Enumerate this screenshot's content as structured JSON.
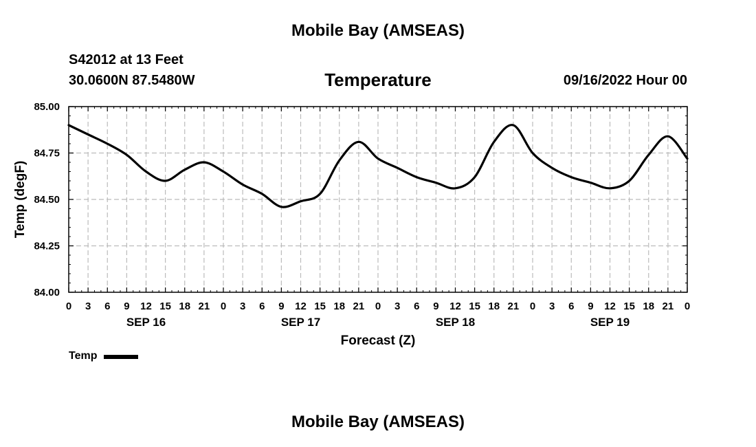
{
  "header": {
    "main_title": "Mobile Bay (AMSEAS)",
    "station": "S42012 at 13 Feet",
    "coords": "30.0600N  87.5480W",
    "subtitle": "Temperature",
    "run_time": "09/16/2022 Hour 00"
  },
  "footer": {
    "main_title": "Mobile Bay (AMSEAS)"
  },
  "chart_data": {
    "type": "line",
    "title": "Temperature",
    "xlabel": "Forecast (Z)",
    "ylabel": "Temp (degF)",
    "ylim": [
      84.0,
      85.0
    ],
    "y_ticks": [
      "84.00",
      "84.25",
      "84.50",
      "84.75",
      "85.00"
    ],
    "x_range_hours": [
      0,
      96
    ],
    "x_tick_labels": [
      "0",
      "3",
      "6",
      "9",
      "12",
      "15",
      "18",
      "21",
      "0",
      "3",
      "6",
      "9",
      "12",
      "15",
      "18",
      "21",
      "0",
      "3",
      "6",
      "9",
      "12",
      "15",
      "18",
      "21",
      "0",
      "3",
      "6",
      "9",
      "12",
      "15",
      "18",
      "21",
      "0"
    ],
    "date_labels": [
      {
        "label": "SEP 16",
        "hour": 12
      },
      {
        "label": "SEP 17",
        "hour": 36
      },
      {
        "label": "SEP 18",
        "hour": 60
      },
      {
        "label": "SEP 19",
        "hour": 84
      }
    ],
    "grid": true,
    "legend": {
      "placement": "bottom-left",
      "entries": [
        "Temp"
      ]
    },
    "series": [
      {
        "name": "Temp",
        "color": "#000000",
        "x": [
          0,
          3,
          6,
          9,
          12,
          15,
          18,
          21,
          24,
          27,
          30,
          33,
          36,
          39,
          42,
          45,
          48,
          51,
          54,
          57,
          60,
          63,
          66,
          69,
          72,
          75,
          78,
          81,
          84,
          87,
          90,
          93,
          96
        ],
        "y": [
          84.9,
          84.85,
          84.8,
          84.74,
          84.65,
          84.6,
          84.66,
          84.7,
          84.65,
          84.58,
          84.53,
          84.46,
          84.49,
          84.53,
          84.71,
          84.81,
          84.72,
          84.67,
          84.62,
          84.59,
          84.56,
          84.62,
          84.81,
          84.9,
          84.75,
          84.67,
          84.62,
          84.59,
          84.56,
          84.6,
          84.74,
          84.84,
          84.72
        ]
      }
    ]
  }
}
